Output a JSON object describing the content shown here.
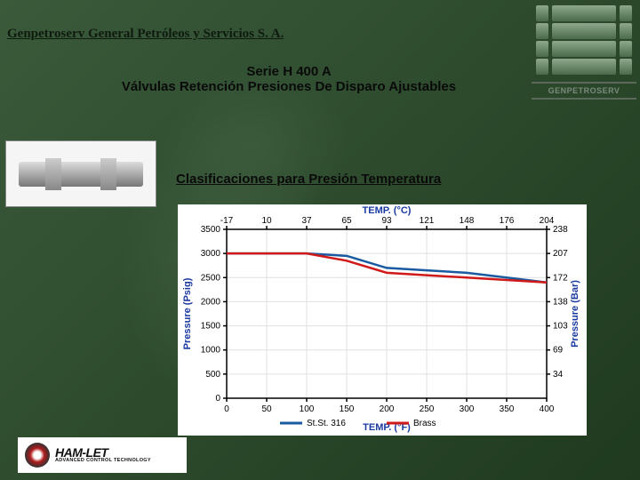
{
  "header": {
    "company_title": "Genpetroserv General Petróleos y Servicios S. A."
  },
  "logo": {
    "brand_text": "GENPETROSERV"
  },
  "series": {
    "line1": "Serie H 400 A",
    "line2": "Válvulas Retención Presiones De Disparo Ajustables"
  },
  "section_title": "Clasificaciones para Presión Temperatura",
  "chart": {
    "type": "line",
    "background_color": "#ffffff",
    "grid_color": "#e0e0e0",
    "axis_color": "#000000",
    "label_color": "#1a3aa0",
    "x_label_bottom": "TEMP. (°F)",
    "x_label_top": "TEMP. (°C)",
    "y_label_left": "Pressure (Psig)",
    "y_label_right": "Pressure (Bar)",
    "label_fontsize": 11,
    "tick_fontsize": 10,
    "xlim": [
      0,
      400
    ],
    "ylim": [
      0,
      3500
    ],
    "x_ticks": [
      0,
      50,
      100,
      150,
      200,
      250,
      300,
      350,
      400
    ],
    "y_ticks": [
      0,
      500,
      1000,
      1500,
      2000,
      2500,
      3000,
      3500
    ],
    "x_top_ticks": [
      -17,
      10,
      37,
      65,
      93,
      121,
      148,
      176,
      204
    ],
    "y_right_ticks": [
      34,
      69,
      103,
      138,
      172,
      207,
      238
    ],
    "series": [
      {
        "name": "St.St. 316",
        "color": "#1a5aa0",
        "line_width": 2.5,
        "x": [
          0,
          100,
          150,
          200,
          250,
          300,
          350,
          400
        ],
        "y": [
          3000,
          3000,
          2950,
          2700,
          2650,
          2600,
          2500,
          2400
        ]
      },
      {
        "name": "Brass",
        "color": "#d01a1a",
        "line_width": 2.5,
        "x": [
          0,
          100,
          150,
          200,
          250,
          300,
          350,
          400
        ],
        "y": [
          3000,
          3000,
          2850,
          2600,
          2550,
          2500,
          2450,
          2400
        ]
      }
    ],
    "legend": {
      "items": [
        "St.St. 316",
        "Brass"
      ],
      "colors": [
        "#1a5aa0",
        "#d01a1a"
      ]
    }
  },
  "footer_logo": {
    "brand": "HAM-LET",
    "tagline": "ADVANCED CONTROL TECHNOLOGY"
  }
}
